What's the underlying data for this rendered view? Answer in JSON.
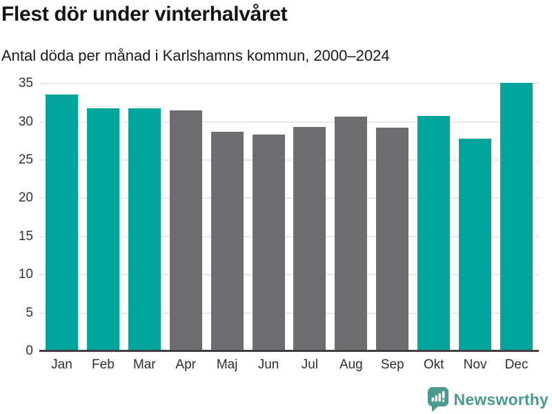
{
  "header": {
    "title": "Flest dör under vinterhalvåret",
    "subtitle": "Antal döda per månad i Karlshamns kommun, 2000–2024"
  },
  "chart_data": {
    "type": "bar",
    "title": "Flest dör under vinterhalvåret",
    "subtitle": "Antal döda per månad i Karlshamns kommun, 2000–2024",
    "categories": [
      "Jan",
      "Feb",
      "Mar",
      "Apr",
      "Maj",
      "Jun",
      "Jul",
      "Aug",
      "Sep",
      "Okt",
      "Nov",
      "Dec"
    ],
    "values": [
      33.6,
      31.8,
      31.8,
      31.5,
      28.7,
      28.3,
      29.3,
      30.7,
      29.2,
      30.8,
      27.8,
      35.1
    ],
    "bar_colors": [
      "teal",
      "teal",
      "teal",
      "gray",
      "gray",
      "gray",
      "gray",
      "gray",
      "gray",
      "teal",
      "teal",
      "teal"
    ],
    "xlabel": "",
    "ylabel": "",
    "ylim": [
      0,
      36
    ],
    "yticks": [
      0,
      5,
      10,
      15,
      20,
      25,
      30,
      35
    ],
    "grid": true,
    "legend": "none",
    "colors": {
      "teal": "#00a49b",
      "gray": "#6e6e72",
      "gridline": "#e8e8e8",
      "axis": "#3f3f42",
      "tick_text": "#333333"
    }
  },
  "footer": {
    "brand": "Newsworthy",
    "brand_color": "#4a9a8e",
    "icon": "newsworthy-chart-bubble-icon"
  }
}
